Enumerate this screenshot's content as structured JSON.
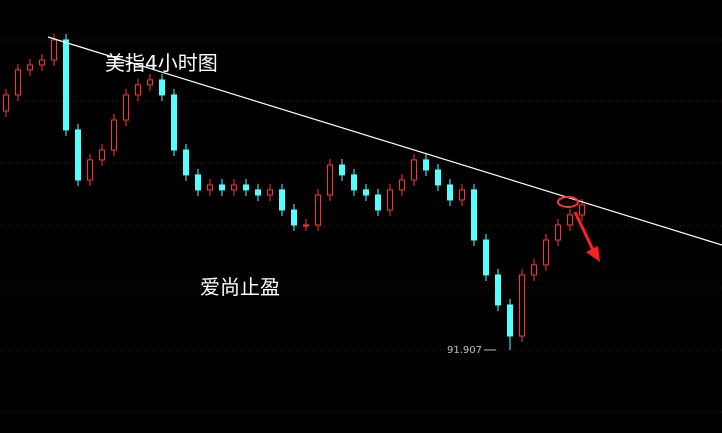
{
  "chart_data": {
    "type": "candlestick",
    "title": "美指4小时图",
    "annotation": "爱尚止盈",
    "low_mark": 91.907,
    "up_color": "#ff3232",
    "down_color": "#54ffff",
    "ylim": [
      91.8,
      94.2
    ],
    "open": [
      93.5,
      93.607,
      93.774,
      93.807,
      93.84,
      93.974,
      93.374,
      93.04,
      93.174,
      93.24,
      93.44,
      93.607,
      93.674,
      93.707,
      93.607,
      93.24,
      93.074,
      92.974,
      93.007,
      92.974,
      93.007,
      92.974,
      92.94,
      92.974,
      92.84,
      92.74,
      92.74,
      92.94,
      93.14,
      93.074,
      92.974,
      92.94,
      92.84,
      92.974,
      93.04,
      93.174,
      93.107,
      93.007,
      92.907,
      92.974,
      92.64,
      92.407,
      92.207,
      92.0,
      92.407,
      92.474,
      92.64,
      92.74,
      92.807
    ],
    "close": [
      93.607,
      93.774,
      93.807,
      93.84,
      93.974,
      93.374,
      93.04,
      93.174,
      93.24,
      93.44,
      93.607,
      93.674,
      93.707,
      93.607,
      93.24,
      93.074,
      92.974,
      93.007,
      92.974,
      93.007,
      92.974,
      92.94,
      92.974,
      92.84,
      92.74,
      92.74,
      92.94,
      93.14,
      93.074,
      92.974,
      92.94,
      92.84,
      92.974,
      93.04,
      93.174,
      93.107,
      93.007,
      92.907,
      92.974,
      92.64,
      92.407,
      92.207,
      92.0,
      92.407,
      92.474,
      92.64,
      92.74,
      92.807,
      92.874
    ],
    "high": [
      93.647,
      93.814,
      93.847,
      93.88,
      94.014,
      94.014,
      93.414,
      93.214,
      93.28,
      93.48,
      93.647,
      93.714,
      93.747,
      93.747,
      93.647,
      93.28,
      93.114,
      93.047,
      93.047,
      93.047,
      93.047,
      93.014,
      93.014,
      93.014,
      92.88,
      92.78,
      92.98,
      93.18,
      93.18,
      93.114,
      93.014,
      92.98,
      93.014,
      93.08,
      93.214,
      93.214,
      93.147,
      93.047,
      93.014,
      93.014,
      92.68,
      92.447,
      92.247,
      92.447,
      92.514,
      92.68,
      92.78,
      92.847,
      92.914
    ],
    "low": [
      93.46,
      93.567,
      93.734,
      93.767,
      93.8,
      93.334,
      93.0,
      93.0,
      93.134,
      93.2,
      93.4,
      93.567,
      93.634,
      93.567,
      93.2,
      93.034,
      92.934,
      92.934,
      92.934,
      92.934,
      92.934,
      92.9,
      92.9,
      92.8,
      92.7,
      92.7,
      92.7,
      92.9,
      93.034,
      92.934,
      92.9,
      92.8,
      92.8,
      92.934,
      93.0,
      93.067,
      92.967,
      92.867,
      92.867,
      92.6,
      92.367,
      92.167,
      91.907,
      91.96,
      92.367,
      92.434,
      92.6,
      92.7,
      92.767
    ]
  }
}
